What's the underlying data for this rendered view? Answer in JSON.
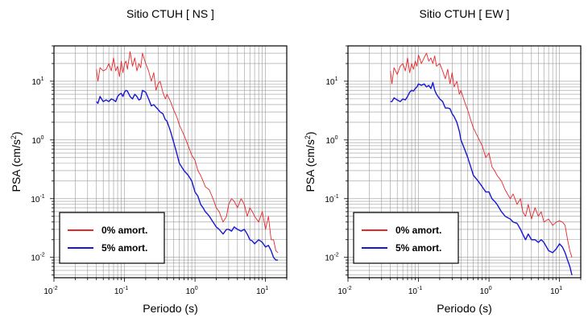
{
  "chart_data": [
    {
      "type": "line",
      "title": "Sitio CTUH [ NS ]",
      "xlabel": "Periodo (s)",
      "ylabel_main": "PSA (cm/s",
      "ylabel_sup": "2",
      "ylabel_end": ")",
      "xscale": "log",
      "yscale": "log",
      "xlim": [
        0.01,
        20
      ],
      "ylim": [
        0.0045,
        40
      ],
      "x_ticks": [
        {
          "base": "10",
          "exp": "-2"
        },
        {
          "base": "10",
          "exp": "-1"
        },
        {
          "base": "10",
          "exp": "0"
        },
        {
          "base": "10",
          "exp": "1"
        }
      ],
      "y_ticks": [
        {
          "base": "10",
          "exp": "-2"
        },
        {
          "base": "10",
          "exp": "-1"
        },
        {
          "base": "10",
          "exp": "0"
        },
        {
          "base": "10",
          "exp": "1"
        }
      ],
      "grid": true,
      "legend_position": "bottom-left",
      "series": [
        {
          "name": "0% amort.",
          "color": "#e8272a",
          "x": [
            0.04,
            0.042,
            0.045,
            0.05,
            0.055,
            0.06,
            0.065,
            0.07,
            0.075,
            0.08,
            0.085,
            0.09,
            0.095,
            0.1,
            0.105,
            0.11,
            0.12,
            0.13,
            0.14,
            0.15,
            0.16,
            0.17,
            0.18,
            0.2,
            0.22,
            0.24,
            0.26,
            0.28,
            0.3,
            0.32,
            0.35,
            0.38,
            0.4,
            0.45,
            0.5,
            0.55,
            0.6,
            0.7,
            0.8,
            0.9,
            1.0,
            1.1,
            1.2,
            1.3,
            1.4,
            1.5,
            1.6,
            1.8,
            2.0,
            2.2,
            2.5,
            2.8,
            3.0,
            3.3,
            3.6,
            4.0,
            4.5,
            5.0,
            5.5,
            6.0,
            6.5,
            7.0,
            8.0,
            9.0,
            10.0,
            11.0,
            12.0,
            13.0,
            14.0,
            15.0
          ],
          "values": [
            16,
            10,
            17,
            15,
            16,
            20,
            15,
            25,
            15,
            18,
            12,
            22,
            14,
            20,
            22,
            16,
            32,
            18,
            25,
            15,
            20,
            17,
            30,
            20,
            15,
            10,
            14,
            7,
            9,
            10,
            6.5,
            5,
            6,
            4.5,
            3.2,
            2.5,
            1.8,
            1.2,
            0.8,
            0.55,
            0.45,
            0.3,
            0.25,
            0.2,
            0.16,
            0.15,
            0.14,
            0.1,
            0.07,
            0.06,
            0.04,
            0.05,
            0.08,
            0.1,
            0.09,
            0.07,
            0.1,
            0.08,
            0.05,
            0.07,
            0.06,
            0.05,
            0.04,
            0.06,
            0.03,
            0.05,
            0.02,
            0.02,
            0.013,
            0.012
          ]
        },
        {
          "name": "5% amort.",
          "color": "#1717d4",
          "x": [
            0.04,
            0.042,
            0.045,
            0.05,
            0.055,
            0.06,
            0.065,
            0.07,
            0.075,
            0.08,
            0.085,
            0.09,
            0.095,
            0.1,
            0.105,
            0.11,
            0.12,
            0.13,
            0.14,
            0.15,
            0.16,
            0.17,
            0.18,
            0.2,
            0.22,
            0.24,
            0.26,
            0.28,
            0.3,
            0.32,
            0.35,
            0.38,
            0.4,
            0.45,
            0.5,
            0.55,
            0.6,
            0.7,
            0.8,
            0.9,
            1.0,
            1.1,
            1.2,
            1.3,
            1.4,
            1.5,
            1.6,
            1.8,
            2.0,
            2.2,
            2.5,
            2.8,
            3.0,
            3.3,
            3.6,
            4.0,
            4.5,
            5.0,
            5.5,
            6.0,
            6.5,
            7.0,
            8.0,
            9.0,
            10.0,
            11.0,
            12.0,
            13.0,
            14.0,
            15.0
          ],
          "values": [
            4.5,
            4.2,
            5.5,
            4.5,
            4.8,
            4.5,
            5,
            4.8,
            4.5,
            5.5,
            6,
            6.2,
            5.5,
            6.5,
            7,
            6.8,
            5.5,
            5,
            6,
            5.5,
            4.8,
            5,
            7,
            6.5,
            5,
            3.8,
            4,
            3.6,
            3.3,
            3,
            2.8,
            2.2,
            2.1,
            1.4,
            0.9,
            0.6,
            0.4,
            0.3,
            0.25,
            0.2,
            0.13,
            0.11,
            0.08,
            0.07,
            0.06,
            0.055,
            0.05,
            0.04,
            0.033,
            0.03,
            0.025,
            0.03,
            0.03,
            0.028,
            0.033,
            0.03,
            0.028,
            0.03,
            0.025,
            0.02,
            0.019,
            0.017,
            0.02,
            0.018,
            0.015,
            0.016,
            0.013,
            0.01,
            0.009,
            0.009
          ]
        }
      ]
    },
    {
      "type": "line",
      "title": "Sitio CTUH [ EW ]",
      "xlabel": "Periodo (s)",
      "ylabel_main": "PSA (cm/s",
      "ylabel_sup": "2",
      "ylabel_end": ")",
      "xscale": "log",
      "yscale": "log",
      "xlim": [
        0.01,
        20
      ],
      "ylim": [
        0.0045,
        40
      ],
      "x_ticks": [
        {
          "base": "10",
          "exp": "-2"
        },
        {
          "base": "10",
          "exp": "-1"
        },
        {
          "base": "10",
          "exp": "0"
        },
        {
          "base": "10",
          "exp": "1"
        }
      ],
      "y_ticks": [
        {
          "base": "10",
          "exp": "-2"
        },
        {
          "base": "10",
          "exp": "-1"
        },
        {
          "base": "10",
          "exp": "0"
        },
        {
          "base": "10",
          "exp": "1"
        }
      ],
      "grid": true,
      "legend_position": "bottom-left",
      "series": [
        {
          "name": "0% amort.",
          "color": "#e8272a",
          "x": [
            0.04,
            0.042,
            0.045,
            0.05,
            0.055,
            0.06,
            0.065,
            0.07,
            0.075,
            0.08,
            0.085,
            0.09,
            0.095,
            0.1,
            0.11,
            0.12,
            0.13,
            0.14,
            0.15,
            0.16,
            0.17,
            0.18,
            0.2,
            0.22,
            0.24,
            0.26,
            0.28,
            0.3,
            0.32,
            0.35,
            0.38,
            0.4,
            0.45,
            0.5,
            0.55,
            0.6,
            0.7,
            0.8,
            0.9,
            1.0,
            1.1,
            1.2,
            1.3,
            1.5,
            1.7,
            2.0,
            2.2,
            2.5,
            2.8,
            3.0,
            3.3,
            3.6,
            4.0,
            4.5,
            5.0,
            5.5,
            6.0,
            7.0,
            8.0,
            9.0,
            10.0,
            11.0,
            12.0,
            13.0,
            14.0,
            15.0
          ],
          "values": [
            15,
            9,
            17,
            13,
            18,
            20,
            15,
            25,
            14,
            20,
            16,
            22,
            18,
            28,
            20,
            25,
            30,
            22,
            25,
            20,
            27,
            18,
            20,
            15,
            11,
            16,
            9,
            14,
            8,
            10,
            6,
            7,
            4.5,
            3.2,
            2.2,
            1.6,
            1.1,
            0.8,
            0.5,
            0.6,
            0.35,
            0.3,
            0.25,
            0.2,
            0.14,
            0.1,
            0.12,
            0.08,
            0.1,
            0.06,
            0.05,
            0.08,
            0.045,
            0.07,
            0.05,
            0.06,
            0.04,
            0.045,
            0.035,
            0.04,
            0.042,
            0.04,
            0.035,
            0.02,
            0.013,
            0.01
          ]
        },
        {
          "name": "5% amort.",
          "color": "#1717d4",
          "x": [
            0.04,
            0.042,
            0.045,
            0.05,
            0.055,
            0.06,
            0.065,
            0.07,
            0.075,
            0.08,
            0.085,
            0.09,
            0.095,
            0.1,
            0.11,
            0.12,
            0.13,
            0.14,
            0.15,
            0.16,
            0.17,
            0.18,
            0.2,
            0.22,
            0.24,
            0.26,
            0.28,
            0.3,
            0.32,
            0.35,
            0.38,
            0.4,
            0.45,
            0.5,
            0.55,
            0.6,
            0.7,
            0.8,
            0.9,
            1.0,
            1.1,
            1.2,
            1.3,
            1.5,
            1.7,
            2.0,
            2.2,
            2.5,
            2.8,
            3.0,
            3.3,
            3.6,
            4.0,
            4.5,
            5.0,
            5.5,
            6.0,
            7.0,
            8.0,
            9.0,
            10.0,
            11.0,
            12.0,
            13.0,
            14.0,
            15.0
          ],
          "values": [
            4.5,
            4.5,
            5.2,
            4.8,
            4.5,
            5,
            4.8,
            5.5,
            6.5,
            7,
            6.8,
            7.5,
            8,
            9,
            8.5,
            9,
            8,
            8.5,
            7.5,
            9.5,
            7,
            6,
            5,
            4.5,
            3.5,
            3.5,
            3.4,
            2.8,
            2.5,
            2,
            1.4,
            1,
            0.7,
            0.5,
            0.35,
            0.25,
            0.2,
            0.16,
            0.13,
            0.13,
            0.1,
            0.09,
            0.08,
            0.06,
            0.05,
            0.045,
            0.04,
            0.038,
            0.03,
            0.025,
            0.02,
            0.025,
            0.02,
            0.02,
            0.018,
            0.02,
            0.018,
            0.013,
            0.012,
            0.014,
            0.017,
            0.015,
            0.012,
            0.009,
            0.007,
            0.005
          ]
        }
      ]
    }
  ]
}
